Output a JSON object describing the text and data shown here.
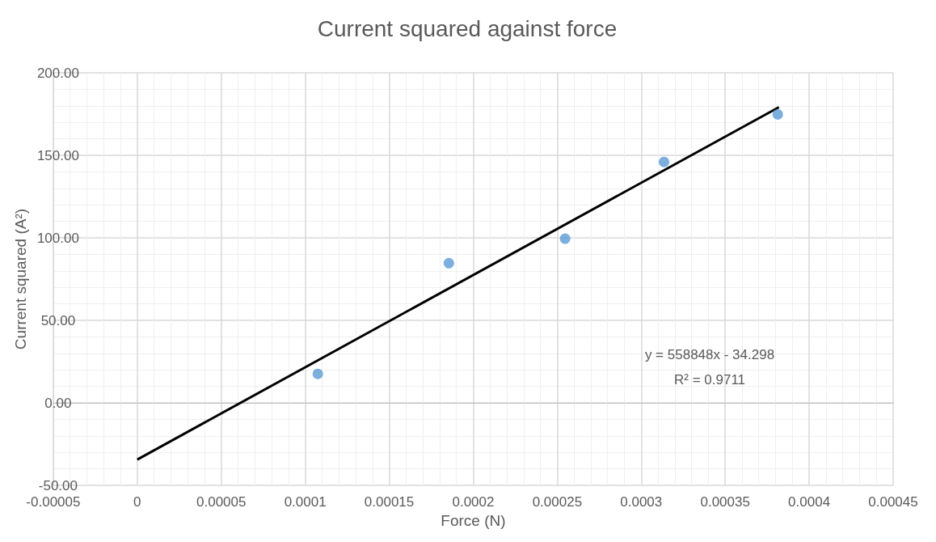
{
  "chart_data": {
    "type": "scatter",
    "title": "Current squared against force",
    "xlabel": "Force (N)",
    "ylabel": "Current squared (A²)",
    "series": [
      {
        "type": "scatter",
        "color": "#5b9bd5",
        "x": [
          0.0001075,
          0.0001855,
          0.0002547,
          0.0003136,
          0.0003813
        ],
        "values": [
          17.6,
          84.7,
          99.5,
          146,
          174.8
        ]
      },
      {
        "type": "line",
        "color": "#000000",
        "x": [
          0,
          0.000382
        ],
        "values": [
          -34.3,
          179.2
        ],
        "marker": "none"
      }
    ],
    "xlim": [
      -5e-05,
      0.00045
    ],
    "xticks": [
      {
        "value": -5e-05,
        "label": "-0.00005"
      },
      0,
      {
        "value": 5e-05,
        "label": "0.00005"
      },
      0.0001,
      0.00015,
      0.0002,
      0.00025,
      0.0003,
      0.00035,
      0.0004,
      0.00045
    ],
    "ylim": [
      -50,
      200
    ],
    "yticks": [
      {
        "value": -50,
        "label": "-50.00"
      },
      {
        "value": 0,
        "label": "0.00"
      },
      {
        "value": 50,
        "label": "50.00"
      },
      {
        "value": 100,
        "label": "100.00"
      },
      {
        "value": 150,
        "label": "150.00"
      },
      {
        "value": 200,
        "label": "200.00"
      }
    ],
    "annotations": [
      "y = 558848x - 34.298",
      "R² = 0.9711"
    ],
    "grid": true,
    "marker": "circle"
  }
}
